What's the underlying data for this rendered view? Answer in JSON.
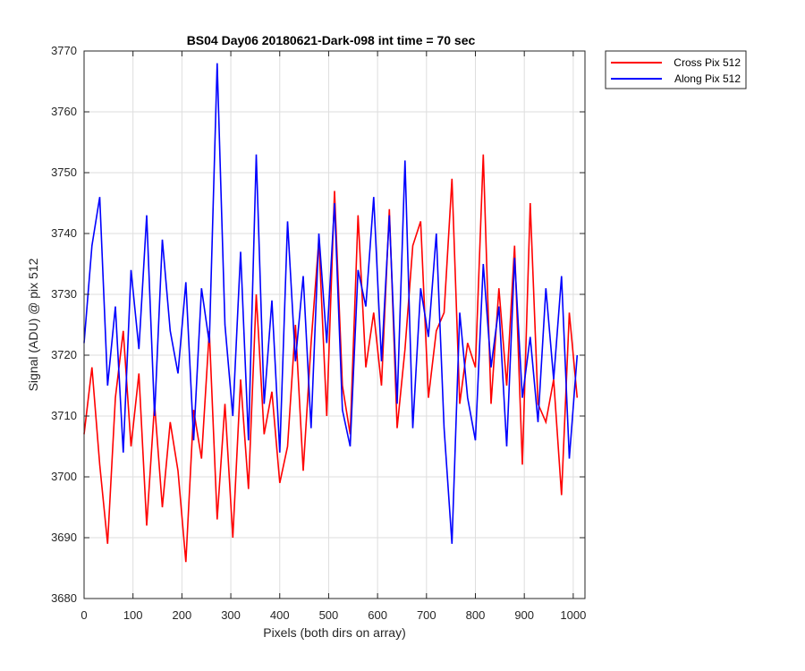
{
  "chart_data": {
    "type": "line",
    "title": "BS04 Day06 20180621-Dark-098 int time = 70 sec",
    "xlabel": "Pixels (both dirs on array)",
    "ylabel": "Signal (ADU) @ pix 512",
    "xlim": [
      0,
      1024
    ],
    "ylim": [
      3680,
      3770
    ],
    "xticks": [
      0,
      100,
      200,
      300,
      400,
      500,
      600,
      700,
      800,
      900,
      1000
    ],
    "yticks": [
      3680,
      3690,
      3700,
      3710,
      3720,
      3730,
      3740,
      3750,
      3760,
      3770
    ],
    "grid": true,
    "legend_position": "outside-top-right",
    "series": [
      {
        "name": "Cross Pix 512",
        "color": "#ff0000",
        "x_start": 0,
        "x_step": 16,
        "values": [
          3707,
          3718,
          3702,
          3689,
          3713,
          3724,
          3705,
          3717,
          3692,
          3712,
          3695,
          3709,
          3701,
          3686,
          3711,
          3703,
          3724,
          3693,
          3712,
          3690,
          3716,
          3698,
          3730,
          3707,
          3714,
          3699,
          3705,
          3725,
          3701,
          3722,
          3739,
          3710,
          3747,
          3715,
          3707,
          3743,
          3718,
          3727,
          3715,
          3744,
          3708,
          3721,
          3738,
          3742,
          3713,
          3724,
          3727,
          3749,
          3712,
          3722,
          3718,
          3753,
          3712,
          3731,
          3715,
          3738,
          3702,
          3745,
          3712,
          3709,
          3716,
          3697,
          3727,
          3713
        ]
      },
      {
        "name": "Along Pix 512",
        "color": "#0000ff",
        "x_start": 0,
        "x_step": 16,
        "values": [
          3722,
          3738,
          3746,
          3715,
          3728,
          3704,
          3734,
          3721,
          3743,
          3710,
          3739,
          3724,
          3717,
          3732,
          3706,
          3731,
          3722,
          3768,
          3725,
          3710,
          3737,
          3706,
          3753,
          3712,
          3729,
          3704,
          3742,
          3719,
          3733,
          3708,
          3740,
          3722,
          3745,
          3711,
          3705,
          3734,
          3728,
          3746,
          3719,
          3743,
          3712,
          3752,
          3708,
          3731,
          3723,
          3740,
          3708,
          3689,
          3727,
          3713,
          3706,
          3735,
          3718,
          3728,
          3705,
          3736,
          3713,
          3723,
          3709,
          3731,
          3716,
          3733,
          3703,
          3720
        ]
      }
    ]
  }
}
